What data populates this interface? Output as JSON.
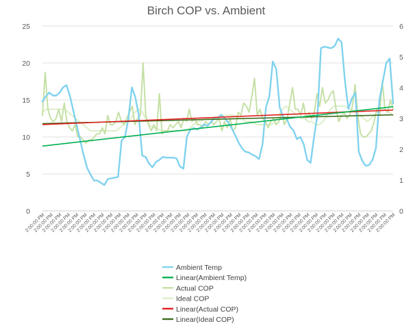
{
  "chart_data": {
    "type": "line",
    "title": "Birch COP vs. Ambient",
    "y_left": {
      "ticks": [
        0,
        5,
        10,
        15,
        20,
        25
      ],
      "range": [
        0,
        25
      ]
    },
    "y_right": {
      "ticks": [
        0,
        1,
        2,
        3,
        4,
        5,
        6
      ],
      "range": [
        0,
        6
      ]
    },
    "x_tick_label": "2:00:00 PM",
    "x_tick_count": 42,
    "legend_position": "bottom",
    "grid": true,
    "series": [
      {
        "name": "Ambient Temp",
        "axis": "left",
        "color": "#7fd2ee",
        "width": 2.4,
        "values": [
          14.8,
          15.5,
          16.0,
          15.6,
          15.6,
          16.0,
          16.7,
          17.0,
          15.5,
          13.5,
          11.5,
          9.5,
          7.5,
          5.8,
          4.9,
          4.1,
          4.1,
          3.8,
          3.5,
          4.3,
          4.4,
          4.5,
          4.6,
          9.5,
          10.0,
          12.5,
          16.7,
          15.4,
          13.0,
          7.5,
          7.3,
          6.4,
          5.9,
          6.6,
          6.9,
          7.3,
          7.2,
          7.2,
          7.2,
          7.1,
          6.0,
          5.7,
          10.0,
          11.0,
          11.2,
          11.0,
          11.3,
          11.7,
          11.5,
          12.0,
          12.6,
          12.6,
          13.0,
          12.5,
          12.0,
          11.2,
          10.3,
          9.3,
          8.5,
          8.0,
          7.9,
          7.6,
          7.4,
          7.0,
          9.0,
          14.0,
          15.5,
          20.2,
          19.2,
          14.0,
          12.7,
          12.5,
          11.4,
          10.9,
          9.7,
          10.0,
          9.0,
          6.9,
          6.5,
          10.0,
          13.0,
          22.0,
          22.2,
          22.1,
          22.0,
          22.3,
          23.3,
          22.8,
          17.5,
          13.8,
          15.2,
          16.0,
          8.0,
          6.8,
          6.1,
          6.2,
          6.9,
          8.5,
          15.0,
          17.5,
          20.0,
          20.6,
          14.5
        ]
      },
      {
        "name": "Linear(Ambient Temp)",
        "axis": "left",
        "color": "#00b050",
        "width": 1.6,
        "trend_of": "Ambient Temp"
      },
      {
        "name": "Actual COP",
        "axis": "right",
        "color": "#c5e0a5",
        "width": 2.0,
        "values": [
          3.1,
          4.5,
          3.3,
          3.0,
          2.9,
          3.0,
          3.3,
          2.9,
          3.5,
          2.9,
          2.7,
          2.6,
          2.8,
          2.4,
          2.4,
          2.3,
          2.2,
          2.3,
          2.3,
          2.4,
          2.5,
          2.5,
          2.7,
          2.5,
          3.1,
          2.8,
          2.8,
          2.9,
          3.2,
          2.9,
          2.8,
          3.0,
          3.2,
          3.4,
          2.8,
          3.0,
          3.1,
          4.8,
          3.1,
          2.8,
          2.6,
          2.8,
          2.6,
          3.8,
          2.5,
          2.6,
          2.6,
          2.8,
          2.7,
          2.8,
          2.9,
          2.7,
          3.0,
          2.9,
          3.3,
          2.9,
          3.0,
          2.8,
          2.8,
          2.7,
          2.9,
          2.8,
          2.9,
          2.8,
          2.9,
          3.0,
          2.6,
          2.9,
          2.7,
          3.0,
          2.6,
          2.7,
          3.2,
          3.1,
          3.5,
          3.4,
          3.2,
          3.7,
          4.3,
          3.1,
          3.3,
          3.0,
          2.9,
          2.7,
          2.9,
          3.0,
          2.8,
          2.9,
          3.2,
          2.8,
          3.0,
          3.5,
          4.0,
          3.3,
          3.3,
          3.1,
          3.5,
          3.0,
          3.2,
          3.0,
          3.2,
          3.8,
          3.4,
          4.0,
          3.5,
          3.6,
          3.8,
          3.9,
          3.3,
          2.9,
          3.1,
          3.2,
          3.0,
          3.1,
          3.4,
          4.1,
          3.1,
          2.5,
          2.4,
          2.4,
          2.5,
          2.6,
          2.9,
          3.3,
          3.1,
          4.2,
          3.3,
          3.2,
          3.6,
          3.3
        ]
      },
      {
        "name": "Ideal COP",
        "axis": "right",
        "color": "#dcefc8",
        "width": 2.0,
        "values": [
          3.2,
          3.3,
          3.3,
          3.3,
          3.3,
          3.3,
          3.3,
          3.2,
          3.1,
          3.0,
          2.9,
          2.8,
          2.7,
          2.6,
          2.6,
          2.6,
          2.6,
          2.6,
          2.6,
          2.6,
          2.6,
          2.7,
          2.8,
          2.9,
          3.0,
          3.2,
          3.3,
          3.2,
          3.0,
          2.8,
          2.7,
          2.7,
          2.6,
          2.6,
          2.6,
          2.6,
          2.6,
          2.6,
          2.6,
          2.6,
          2.7,
          2.8,
          2.9,
          2.9,
          3.0,
          3.0,
          3.0,
          3.0,
          3.0,
          3.1,
          3.1,
          3.1,
          3.1,
          3.0,
          3.0,
          2.9,
          2.9,
          2.9,
          2.8,
          2.8,
          2.8,
          2.8,
          2.8,
          2.9,
          3.1,
          3.3,
          3.4,
          3.3,
          3.2,
          3.1,
          3.0,
          3.0,
          2.9,
          2.9,
          2.8,
          2.8,
          2.9,
          3.1,
          3.3,
          3.4,
          3.4,
          3.4,
          3.4,
          3.3,
          3.3,
          3.2,
          3.1,
          3.0,
          2.9,
          3.0,
          3.1,
          3.3,
          3.3,
          3.3,
          3.2,
          3.1
        ]
      },
      {
        "name": "Linear(Actual COP)",
        "axis": "right",
        "color": "#e21e1e",
        "width": 1.6,
        "trend_of": "Actual COP"
      },
      {
        "name": "Linear(Ideal COP)",
        "axis": "right",
        "color": "#3d6b1f",
        "width": 1.6,
        "trend_of": "Ideal COP"
      }
    ]
  }
}
